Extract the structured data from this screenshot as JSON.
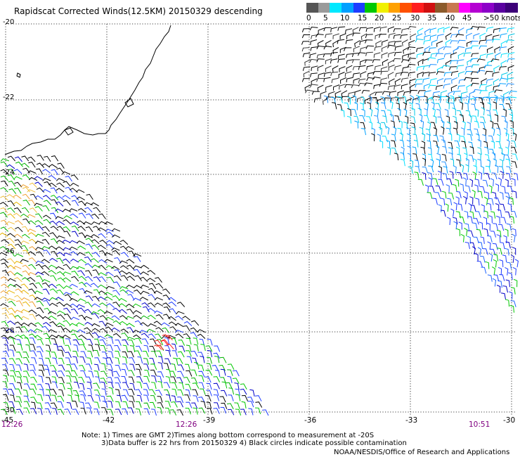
{
  "title": "Rapidscat Corrected Winds(12.5KM) 20150329 descending",
  "legend": {
    "ticks": [
      "0",
      "5",
      "10",
      "15",
      "20",
      "25",
      "30",
      "35",
      "40",
      "45",
      ">50 knots"
    ],
    "colors": [
      "#555555",
      "#9a9a9a",
      "#00e8ff",
      "#00a0ff",
      "#1e3cff",
      "#00c800",
      "#f0f000",
      "#ffa000",
      "#ff5000",
      "#ff1e1e",
      "#d01010",
      "#8b5a2b",
      "#c87850",
      "#ff00ff",
      "#b400d2",
      "#8c00c8",
      "#5a00a0",
      "#3c0078"
    ]
  },
  "latitude_labels": [
    "-20",
    "-22",
    "-24",
    "-26",
    "-28",
    "-30"
  ],
  "longitude_labels": [
    "-45",
    "-42",
    "-39",
    "-36",
    "-33",
    "-30"
  ],
  "time_labels": [
    "12:26",
    "12:26",
    "10:51"
  ],
  "notes": {
    "line1": "Note: 1) Times are GMT 2)Times along bottom correspond to measurement at -20S",
    "line2": "3)Data buffer is 22 hrs from 20150329 4) Black circles indicate possible contamination"
  },
  "credit": "NOAA/NESDIS/Office of Research and Applications"
}
